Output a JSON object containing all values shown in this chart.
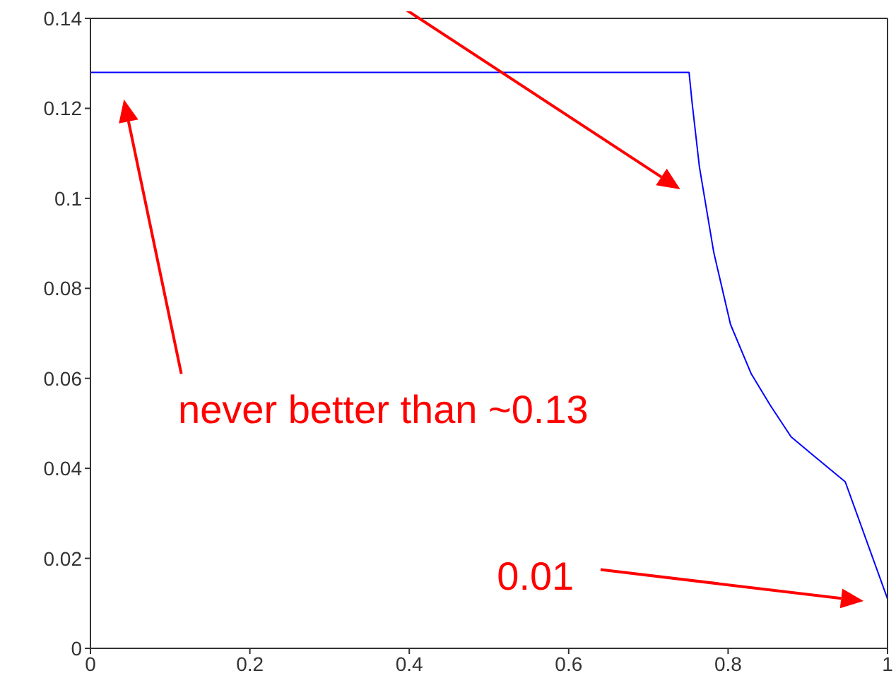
{
  "chart_data": {
    "type": "line",
    "x": [
      0,
      0.751,
      0.755,
      0.764,
      0.782,
      0.803,
      0.829,
      0.853,
      0.879,
      0.906,
      0.947,
      1.0
    ],
    "series": [
      {
        "color": "#0000ff",
        "values": [
          0.128,
          0.128,
          0.121,
          0.107,
          0.088,
          0.072,
          0.061,
          0.054,
          0.047,
          0.043,
          0.037,
          0.011
        ]
      }
    ],
    "xlim": [
      0,
      1
    ],
    "xticks": [
      0,
      0.2,
      0.4,
      0.6,
      0.8,
      1
    ],
    "ylim": [
      0,
      0.14
    ],
    "yticks": [
      0,
      0.02,
      0.04,
      0.06,
      0.08,
      0.1,
      0.12,
      0.14
    ],
    "annotations": [
      "never better than ~0.13",
      "0.01"
    ],
    "grid": false,
    "legend": false,
    "marker": "none",
    "line_style": "solid"
  }
}
